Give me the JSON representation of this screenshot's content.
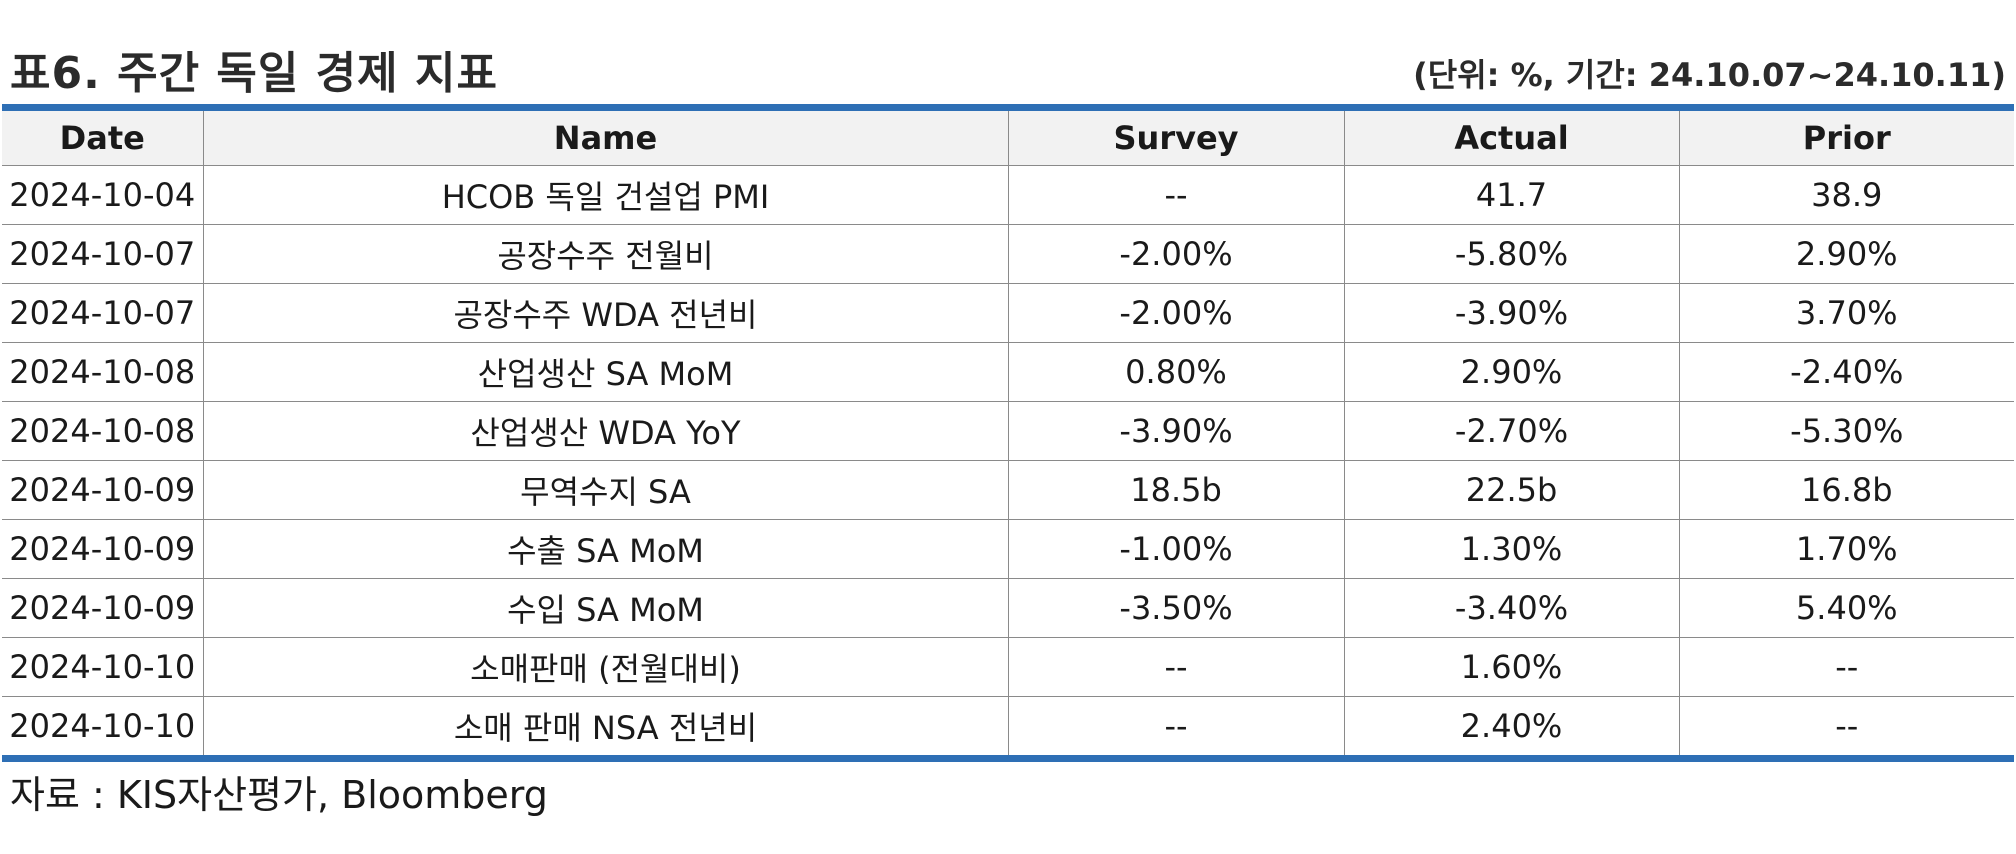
{
  "header": {
    "title": "표6. 주간 독일 경제 지표",
    "unit_note": "(단위: %, 기간: 24.10.07~24.10.11)"
  },
  "table": {
    "columns": [
      "Date",
      "Name",
      "Survey",
      "Actual",
      "Prior"
    ],
    "rows": [
      {
        "date": "2024-10-04",
        "name": "HCOB 독일 건설업 PMI",
        "survey": "--",
        "actual": "41.7",
        "prior": "38.9"
      },
      {
        "date": "2024-10-07",
        "name": "공장수주 전월비",
        "survey": "-2.00%",
        "actual": "-5.80%",
        "prior": "2.90%"
      },
      {
        "date": "2024-10-07",
        "name": "공장수주 WDA 전년비",
        "survey": "-2.00%",
        "actual": "-3.90%",
        "prior": "3.70%"
      },
      {
        "date": "2024-10-08",
        "name": "산업생산 SA MoM",
        "survey": "0.80%",
        "actual": "2.90%",
        "prior": "-2.40%"
      },
      {
        "date": "2024-10-08",
        "name": "산업생산 WDA YoY",
        "survey": "-3.90%",
        "actual": "-2.70%",
        "prior": "-5.30%"
      },
      {
        "date": "2024-10-09",
        "name": "무역수지 SA",
        "survey": "18.5b",
        "actual": "22.5b",
        "prior": "16.8b"
      },
      {
        "date": "2024-10-09",
        "name": "수출 SA MoM",
        "survey": "-1.00%",
        "actual": "1.30%",
        "prior": "1.70%"
      },
      {
        "date": "2024-10-09",
        "name": "수입 SA MoM",
        "survey": "-3.50%",
        "actual": "-3.40%",
        "prior": "5.40%"
      },
      {
        "date": "2024-10-10",
        "name": "소매판매 (전월대비)",
        "survey": "--",
        "actual": "1.60%",
        "prior": "--"
      },
      {
        "date": "2024-10-10",
        "name": "소매 판매 NSA 전년비",
        "survey": "--",
        "actual": "2.40%",
        "prior": "--"
      }
    ]
  },
  "footer": {
    "source": "자료 : KIS자산평가, Bloomberg"
  },
  "colors": {
    "accent_rule": "#2e6fb5",
    "header_bg": "#f2f2f2",
    "grid_line": "#8a8a8a"
  }
}
